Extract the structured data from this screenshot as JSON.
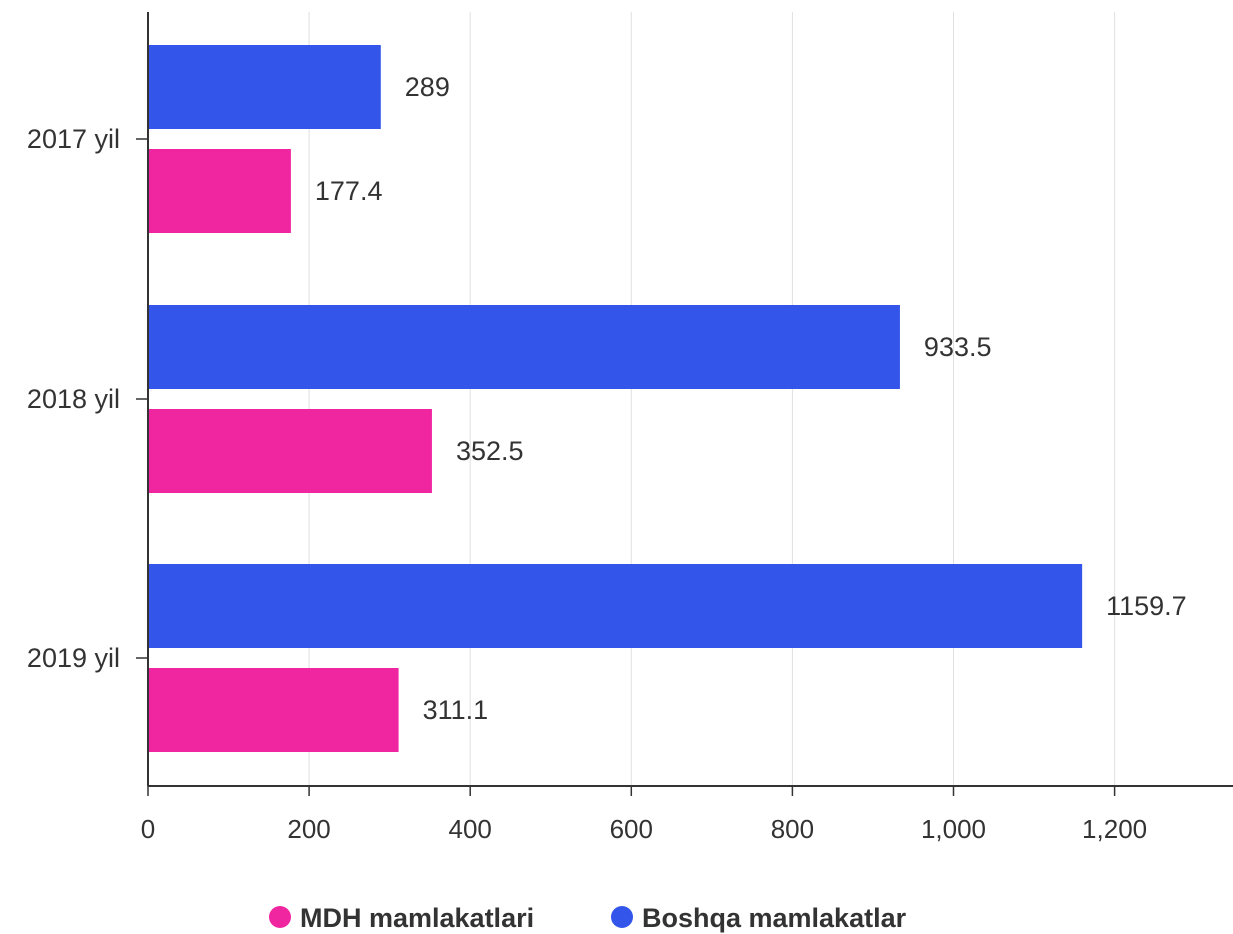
{
  "chart_data": {
    "type": "bar",
    "orientation": "horizontal",
    "categories": [
      "2017 yil",
      "2018 yil",
      "2019 yil"
    ],
    "series": [
      {
        "name": "Boshqa mamlakatlar",
        "color": "#3355ea",
        "values": [
          289,
          933.5,
          1159.7
        ],
        "value_labels": [
          "289",
          "933.5",
          "1159.7"
        ]
      },
      {
        "name": "MDH mamlakatlari",
        "color": "#f026a1",
        "values": [
          177.4,
          352.5,
          311.1
        ],
        "value_labels": [
          "177.4",
          "352.5",
          "311.1"
        ]
      }
    ],
    "x_ticks": [
      0,
      200,
      400,
      600,
      800,
      1000,
      1200
    ],
    "x_tick_labels": [
      "0",
      "200",
      "400",
      "600",
      "800",
      "1,000",
      "1,200"
    ],
    "xlim": [
      0,
      1350
    ],
    "grid": true,
    "legend": {
      "position": "bottom",
      "entries": [
        {
          "label": "MDH mamlakatlari",
          "color": "#f026a1"
        },
        {
          "label": "Boshqa mamlakatlar",
          "color": "#3355ea"
        }
      ]
    }
  }
}
